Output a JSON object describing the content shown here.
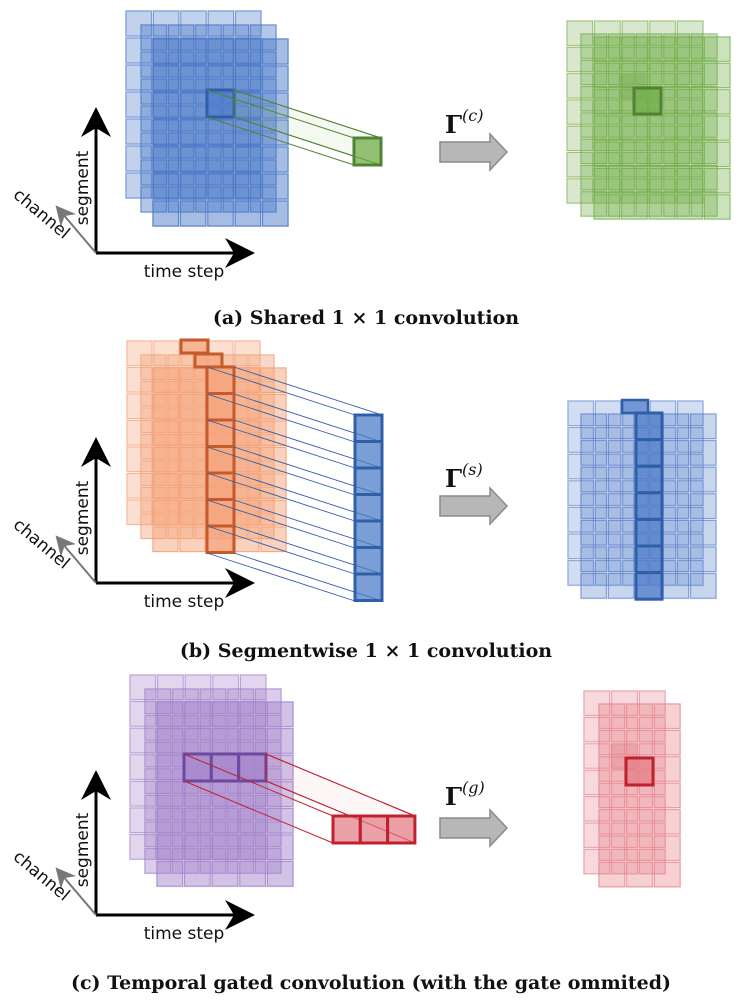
{
  "panels": [
    {
      "id": "a",
      "caption": "(a) Shared 1 × 1 convolution",
      "operator": {
        "symbol": "Γ",
        "superscript": "(c)"
      },
      "axes": {
        "vertical": "segment",
        "horizontal": "time step",
        "depth": "channel"
      },
      "input_color": "#4a78c8",
      "output_color": "#70ad47",
      "input_edge": "#2f5fa8",
      "output_edge": "#548235"
    },
    {
      "id": "b",
      "caption": "(b) Segmentwise 1 × 1 convolution",
      "operator": {
        "symbol": "Γ",
        "superscript": "(s)"
      },
      "axes": {
        "vertical": "segment",
        "horizontal": "time step",
        "depth": "channel"
      },
      "input_color": "#f4a37a",
      "output_color": "#4a78c8",
      "input_edge": "#c55a2a",
      "output_edge": "#2f5fa8"
    },
    {
      "id": "c",
      "caption": "(c) Temporal gated convolution (with the gate ommited)",
      "operator": {
        "symbol": "Γ",
        "superscript": "(g)"
      },
      "axes": {
        "vertical": "segment",
        "horizontal": "time step",
        "depth": "channel"
      },
      "input_color": "#a585cc",
      "output_color": "#e57b85",
      "input_edge": "#6e4a9e",
      "output_edge": "#c0212f"
    }
  ],
  "arrow_color": "#b7b7b7"
}
